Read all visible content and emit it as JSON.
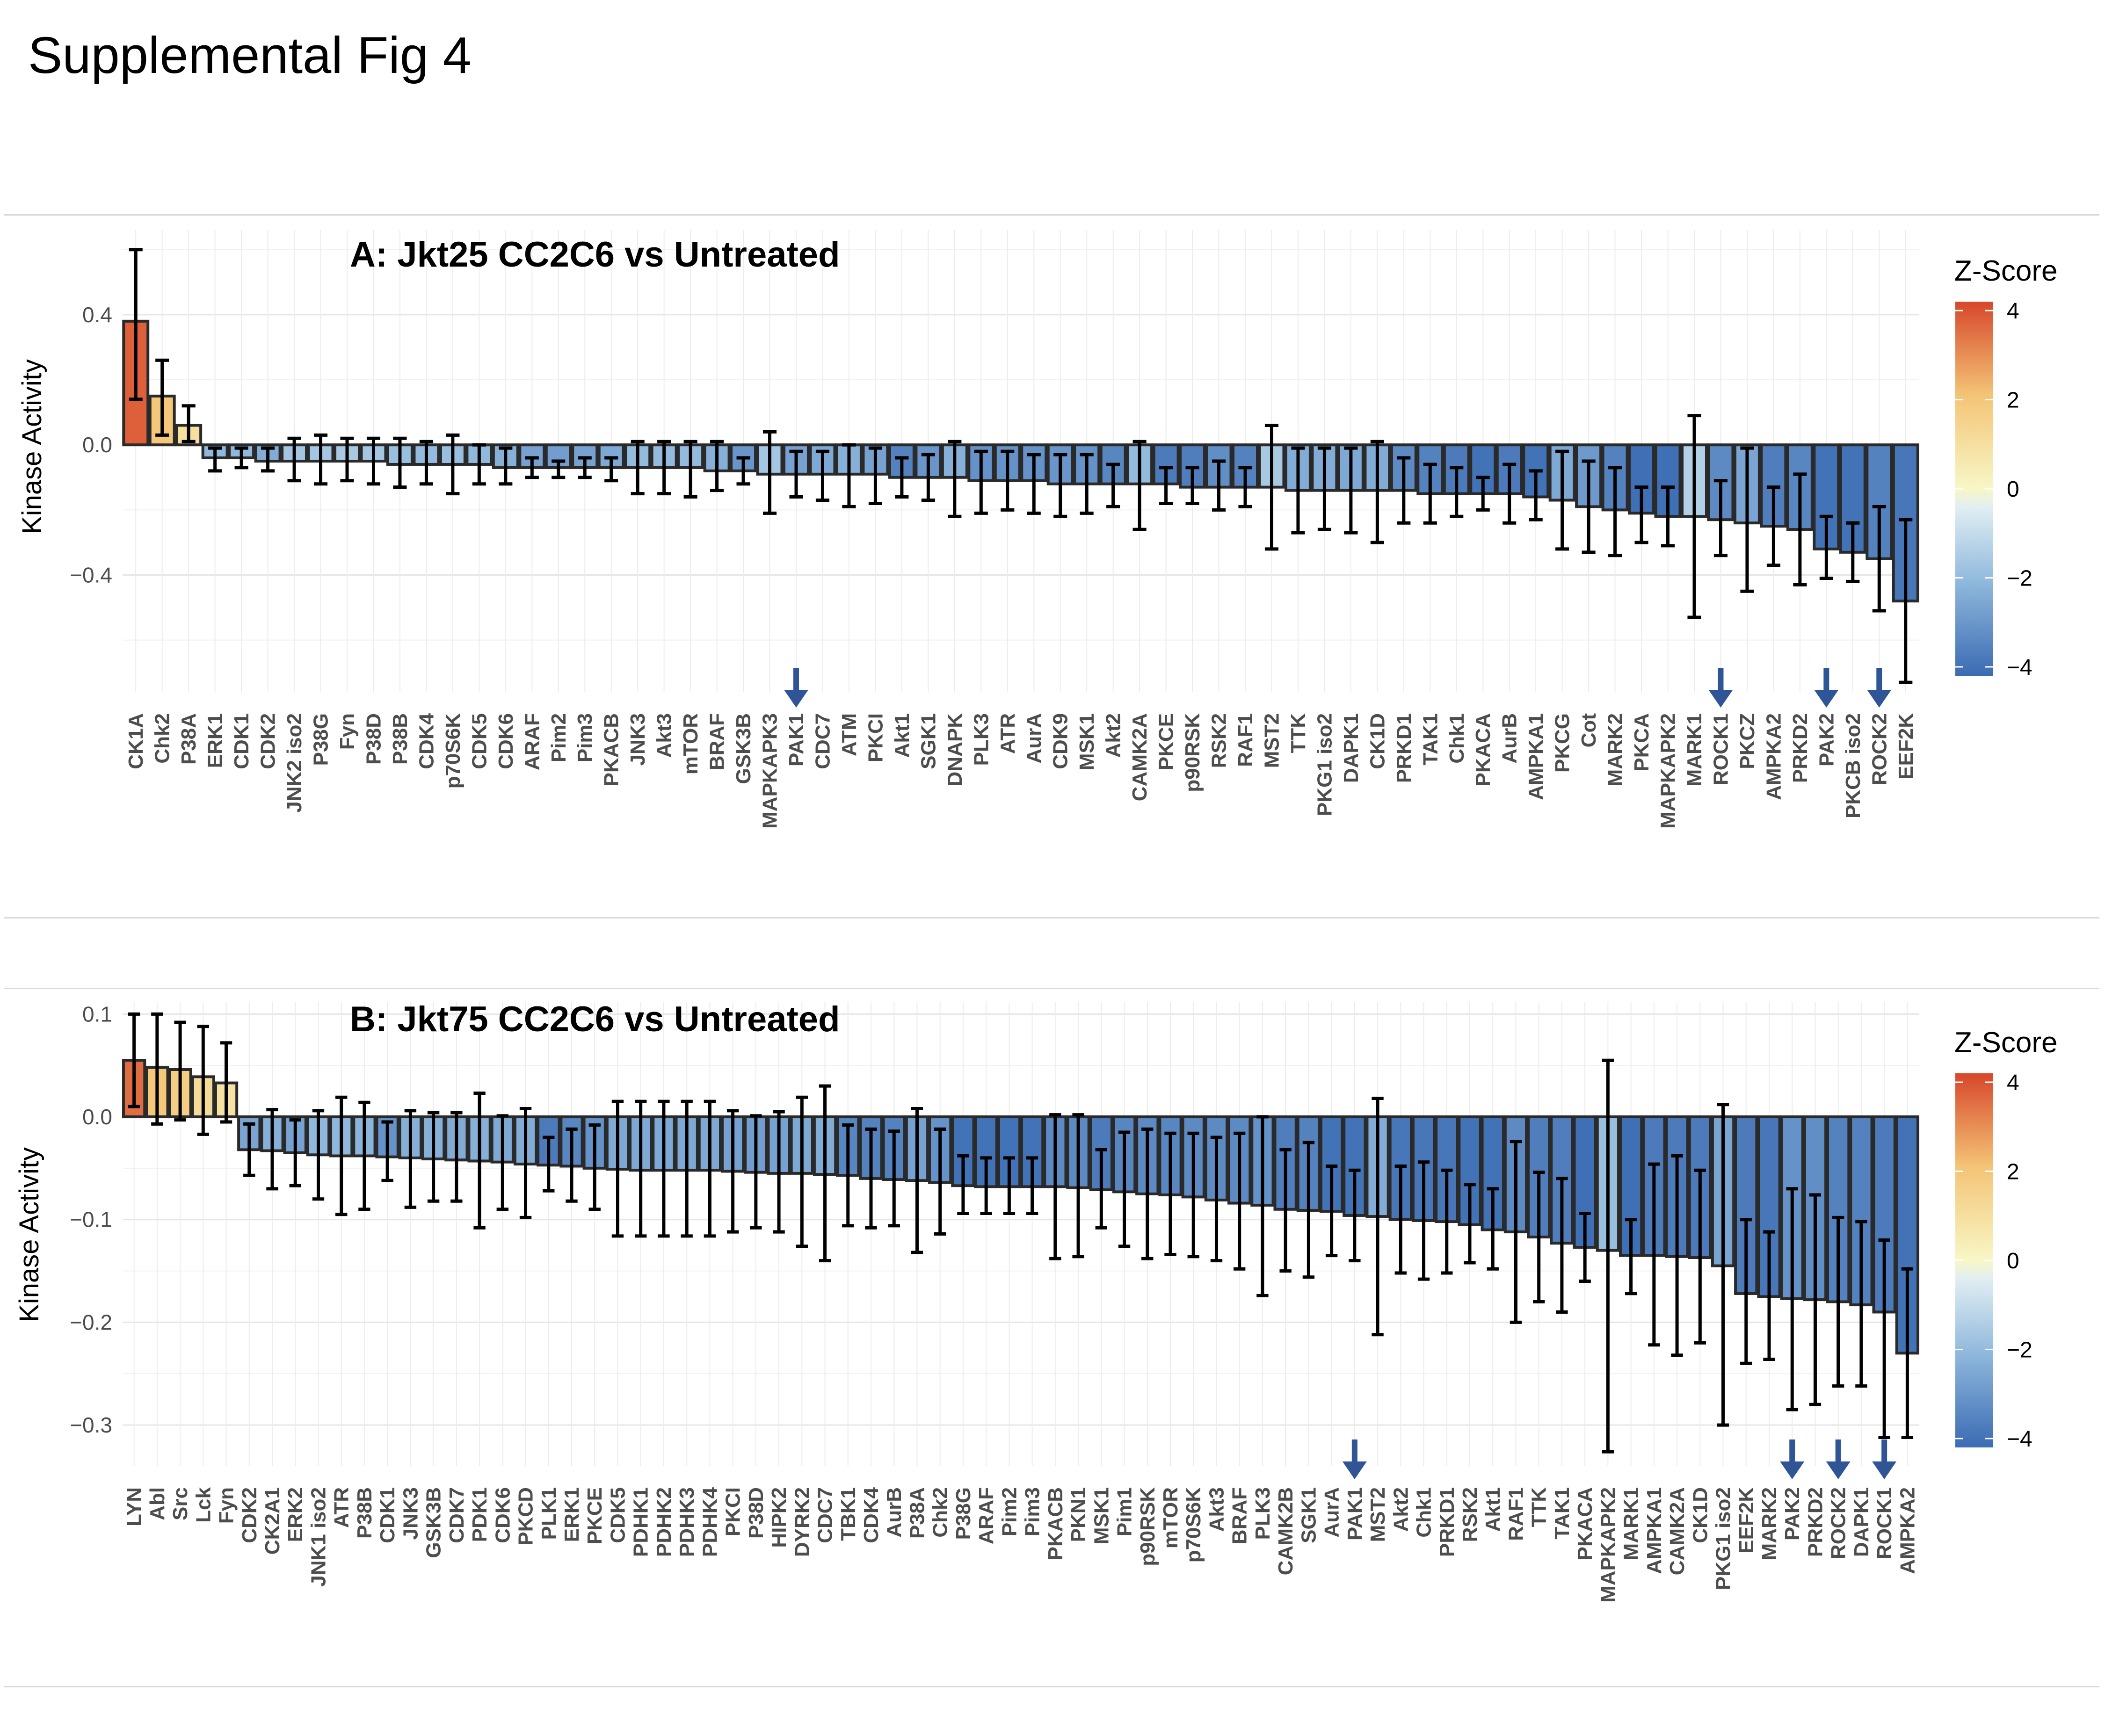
{
  "figure_title": "Supplemental Fig 4",
  "colors": {
    "z_low": "#3b6bb3",
    "z_mid": "#f7f7c6",
    "z_high": "#d7472b",
    "arrow": "#2f5597",
    "bar_outline": "#2a2a2a"
  },
  "chart_data": [
    {
      "type": "bar",
      "title": "A: Jkt25 CC2C6 vs Untreated",
      "xlabel": "",
      "ylabel": "Kinase Activity",
      "yticks": [
        -0.4,
        0.0,
        0.4
      ],
      "ytick_labels": [
        "-0.4",
        "0.0",
        "0.4"
      ],
      "ylim": [
        -0.76,
        0.66
      ],
      "legend": {
        "title": "Z-Score",
        "position": "right",
        "ticks": [
          4,
          2,
          0,
          -2,
          -4
        ],
        "range": [
          -4.2,
          4.2
        ]
      },
      "grid": true,
      "categories": [
        "CK1A",
        "Chk2",
        "P38A",
        "ERK1",
        "CDK1",
        "CDK2",
        "JNK2 iso2",
        "P38G",
        "Fyn",
        "P38D",
        "P38B",
        "CDK4",
        "p70S6K",
        "CDK5",
        "CDK6",
        "ARAF",
        "Pim2",
        "Pim3",
        "PKACB",
        "JNK3",
        "Akt3",
        "mTOR",
        "BRAF",
        "GSK3B",
        "MAPKAPK3",
        "PAK1",
        "CDC7",
        "ATM",
        "PKCI",
        "Akt1",
        "SGK1",
        "DNAPK",
        "PLK3",
        "ATR",
        "AurA",
        "CDK9",
        "MSK1",
        "Akt2",
        "CAMK2A",
        "PKCE",
        "p90RSK",
        "RSK2",
        "RAF1",
        "MST2",
        "TTK",
        "PKG1 iso2",
        "DAPK1",
        "CK1D",
        "PRKD1",
        "TAK1",
        "Chk1",
        "PKACA",
        "AurB",
        "AMPKA1",
        "PKCG",
        "Cot",
        "MARK2",
        "PKCA",
        "MAPKAPK2",
        "MARK1",
        "ROCK1",
        "PKCZ",
        "AMPKA2",
        "PRKD2",
        "PAK2",
        "PKCB iso2",
        "ROCK2",
        "EEF2K"
      ],
      "values": [
        0.38,
        0.15,
        0.06,
        -0.04,
        -0.04,
        -0.05,
        -0.05,
        -0.05,
        -0.05,
        -0.05,
        -0.06,
        -0.06,
        -0.06,
        -0.06,
        -0.07,
        -0.07,
        -0.07,
        -0.07,
        -0.07,
        -0.07,
        -0.07,
        -0.07,
        -0.08,
        -0.08,
        -0.09,
        -0.09,
        -0.09,
        -0.09,
        -0.09,
        -0.1,
        -0.1,
        -0.1,
        -0.11,
        -0.11,
        -0.11,
        -0.12,
        -0.12,
        -0.12,
        -0.12,
        -0.12,
        -0.13,
        -0.13,
        -0.13,
        -0.13,
        -0.14,
        -0.14,
        -0.14,
        -0.14,
        -0.14,
        -0.15,
        -0.15,
        -0.15,
        -0.15,
        -0.16,
        -0.17,
        -0.19,
        -0.2,
        -0.21,
        -0.22,
        -0.22,
        -0.23,
        -0.24,
        -0.25,
        -0.26,
        -0.32,
        -0.33,
        -0.35,
        -0.48
      ],
      "err_low": [
        0.14,
        0.03,
        0.01,
        -0.08,
        -0.07,
        -0.08,
        -0.11,
        -0.12,
        -0.11,
        -0.12,
        -0.13,
        -0.12,
        -0.15,
        -0.12,
        -0.12,
        -0.1,
        -0.1,
        -0.1,
        -0.11,
        -0.15,
        -0.15,
        -0.16,
        -0.14,
        -0.12,
        -0.21,
        -0.16,
        -0.17,
        -0.19,
        -0.18,
        -0.16,
        -0.17,
        -0.22,
        -0.21,
        -0.2,
        -0.21,
        -0.22,
        -0.21,
        -0.19,
        -0.26,
        -0.18,
        -0.18,
        -0.2,
        -0.19,
        -0.32,
        -0.27,
        -0.26,
        -0.27,
        -0.3,
        -0.24,
        -0.24,
        -0.22,
        -0.2,
        -0.24,
        -0.23,
        -0.32,
        -0.33,
        -0.34,
        -0.3,
        -0.31,
        -0.53,
        -0.34,
        -0.45,
        -0.37,
        -0.43,
        -0.41,
        -0.42,
        -0.51,
        -0.73
      ],
      "err_high": [
        0.6,
        0.26,
        0.12,
        -0.01,
        -0.01,
        -0.01,
        0.02,
        0.03,
        0.02,
        0.02,
        0.02,
        0.01,
        0.03,
        0.0,
        -0.01,
        -0.04,
        -0.05,
        -0.04,
        -0.04,
        0.01,
        0.01,
        0.01,
        0.01,
        -0.04,
        0.04,
        -0.02,
        -0.02,
        0.0,
        -0.01,
        -0.04,
        -0.03,
        0.01,
        -0.02,
        -0.02,
        -0.03,
        -0.03,
        -0.03,
        -0.06,
        0.01,
        -0.07,
        -0.07,
        -0.05,
        -0.07,
        0.06,
        -0.01,
        -0.01,
        -0.01,
        0.01,
        -0.04,
        -0.06,
        -0.07,
        -0.1,
        -0.06,
        -0.08,
        -0.02,
        -0.05,
        -0.07,
        -0.13,
        -0.13,
        0.09,
        -0.11,
        -0.01,
        -0.13,
        -0.09,
        -0.22,
        -0.24,
        -0.19,
        -0.23
      ],
      "zscores": [
        3.6,
        1.9,
        1.0,
        -2.0,
        -2.0,
        -2.3,
        -1.6,
        -1.6,
        -1.5,
        -1.6,
        -1.8,
        -1.9,
        -1.8,
        -2.0,
        -2.2,
        -2.6,
        -2.7,
        -2.6,
        -2.4,
        -1.9,
        -1.9,
        -1.9,
        -2.2,
        -2.9,
        -1.6,
        -2.6,
        -2.4,
        -2.2,
        -2.6,
        -3.4,
        -2.9,
        -2.2,
        -3.0,
        -3.0,
        -3.0,
        -2.9,
        -3.0,
        -3.3,
        -1.9,
        -3.6,
        -3.5,
        -3.1,
        -3.4,
        -1.5,
        -2.3,
        -2.3,
        -2.4,
        -2.3,
        -3.2,
        -3.4,
        -3.6,
        -3.8,
        -3.6,
        -3.8,
        -2.4,
        -2.8,
        -3.4,
        -3.9,
        -3.9,
        -1.3,
        -3.2,
        -2.5,
        -3.5,
        -3.3,
        -3.8,
        -3.8,
        -3.4,
        -3.7
      ],
      "arrows": [
        "PAK1",
        "ROCK1",
        "PAK2",
        "ROCK2"
      ]
    },
    {
      "type": "bar",
      "title": "B: Jkt75 CC2C6 vs Untreated",
      "xlabel": "",
      "ylabel": "Kinase Activity",
      "yticks": [
        -0.3,
        -0.2,
        -0.1,
        0.0,
        0.1
      ],
      "ytick_labels": [
        "-0.3",
        "-0.2",
        "-0.1",
        "0.0",
        "0.1"
      ],
      "ylim": [
        -0.34,
        0.112
      ],
      "legend": {
        "title": "Z-Score",
        "position": "right",
        "ticks": [
          4,
          2,
          0,
          -2,
          -4
        ],
        "range": [
          -4.2,
          4.2
        ]
      },
      "grid": true,
      "categories": [
        "LYN",
        "Abl",
        "Src",
        "Lck",
        "Fyn",
        "CDK2",
        "CK2A1",
        "ERK2",
        "JNK1 iso2",
        "ATR",
        "P38B",
        "CDK1",
        "JNK3",
        "GSK3B",
        "CDK7",
        "PDK1",
        "CDK6",
        "PKCD",
        "PLK1",
        "ERK1",
        "PKCE",
        "CDK5",
        "PDHK1",
        "PDHK2",
        "PDHK3",
        "PDHK4",
        "PKCI",
        "P38D",
        "HIPK2",
        "DYRK2",
        "CDC7",
        "TBK1",
        "CDK4",
        "AurB",
        "P38A",
        "Chk2",
        "P38G",
        "ARAF",
        "Pim2",
        "Pim3",
        "PKACB",
        "PKN1",
        "MSK1",
        "Pim1",
        "p90RSK",
        "mTOR",
        "p70S6K",
        "Akt3",
        "BRAF",
        "PLK3",
        "CAMK2B",
        "SGK1",
        "AurA",
        "PAK1",
        "MST2",
        "Akt2",
        "Chk1",
        "PRKD1",
        "RSK2",
        "Akt1",
        "RAF1",
        "TTK",
        "TAK1",
        "PKACA",
        "MAPKAPK2",
        "MARK1",
        "AMPKA1",
        "CAMK2A",
        "CK1D",
        "PKG1 iso2",
        "EEF2K",
        "MARK2",
        "PAK2",
        "PRKD2",
        "ROCK2",
        "DAPK1",
        "ROCK1",
        "AMPKA2"
      ],
      "values": [
        0.055,
        0.048,
        0.046,
        0.039,
        0.033,
        -0.032,
        -0.033,
        -0.035,
        -0.037,
        -0.038,
        -0.038,
        -0.039,
        -0.04,
        -0.041,
        -0.042,
        -0.043,
        -0.044,
        -0.046,
        -0.047,
        -0.048,
        -0.05,
        -0.051,
        -0.052,
        -0.052,
        -0.052,
        -0.052,
        -0.053,
        -0.054,
        -0.055,
        -0.055,
        -0.056,
        -0.057,
        -0.06,
        -0.061,
        -0.062,
        -0.064,
        -0.067,
        -0.068,
        -0.068,
        -0.068,
        -0.068,
        -0.069,
        -0.071,
        -0.073,
        -0.075,
        -0.076,
        -0.078,
        -0.081,
        -0.084,
        -0.086,
        -0.09,
        -0.091,
        -0.092,
        -0.096,
        -0.097,
        -0.1,
        -0.101,
        -0.102,
        -0.105,
        -0.11,
        -0.112,
        -0.117,
        -0.123,
        -0.127,
        -0.13,
        -0.135,
        -0.135,
        -0.136,
        -0.137,
        -0.145,
        -0.172,
        -0.175,
        -0.177,
        -0.178,
        -0.18,
        -0.183,
        -0.19,
        -0.23
      ],
      "err_low": [
        0.01,
        -0.007,
        -0.003,
        -0.017,
        -0.005,
        -0.057,
        -0.07,
        -0.067,
        -0.08,
        -0.095,
        -0.09,
        -0.062,
        -0.088,
        -0.082,
        -0.082,
        -0.108,
        -0.09,
        -0.098,
        -0.072,
        -0.082,
        -0.09,
        -0.116,
        -0.116,
        -0.116,
        -0.116,
        -0.116,
        -0.112,
        -0.108,
        -0.112,
        -0.126,
        -0.14,
        -0.106,
        -0.108,
        -0.106,
        -0.132,
        -0.114,
        -0.094,
        -0.094,
        -0.094,
        -0.094,
        -0.138,
        -0.136,
        -0.108,
        -0.126,
        -0.138,
        -0.134,
        -0.136,
        -0.14,
        -0.148,
        -0.174,
        -0.15,
        -0.156,
        -0.135,
        -0.14,
        -0.212,
        -0.152,
        -0.158,
        -0.152,
        -0.142,
        -0.148,
        -0.2,
        -0.18,
        -0.19,
        -0.16,
        -0.326,
        -0.172,
        -0.222,
        -0.232,
        -0.22,
        -0.3,
        -0.24,
        -0.236,
        -0.285,
        -0.28,
        -0.262,
        -0.262,
        -0.312,
        -0.312
      ],
      "err_high": [
        0.1,
        0.1,
        0.092,
        0.088,
        0.072,
        -0.007,
        0.007,
        -0.003,
        0.006,
        0.019,
        0.014,
        -0.005,
        0.006,
        0.004,
        0.004,
        0.023,
        0.001,
        0.008,
        -0.02,
        -0.012,
        -0.008,
        0.015,
        0.015,
        0.015,
        0.015,
        0.015,
        0.006,
        0.001,
        0.005,
        0.019,
        0.03,
        -0.008,
        -0.012,
        -0.014,
        0.008,
        -0.012,
        -0.038,
        -0.04,
        -0.04,
        -0.04,
        0.002,
        0.002,
        -0.032,
        -0.015,
        -0.012,
        -0.016,
        -0.016,
        -0.02,
        -0.016,
        0.0,
        -0.032,
        -0.025,
        -0.048,
        -0.052,
        0.018,
        -0.048,
        -0.044,
        -0.052,
        -0.066,
        -0.07,
        -0.024,
        -0.054,
        -0.06,
        -0.094,
        0.055,
        -0.1,
        -0.046,
        -0.038,
        -0.052,
        0.012,
        -0.1,
        -0.112,
        -0.07,
        -0.076,
        -0.098,
        -0.102,
        -0.12,
        -0.148
      ],
      "zscores": [
        3.4,
        1.9,
        1.6,
        1.1,
        0.9,
        -2.5,
        -2.2,
        -2.6,
        -2.0,
        -2.0,
        -2.1,
        -3.0,
        -2.2,
        -2.2,
        -2.3,
        -2.2,
        -2.4,
        -2.3,
        -3.6,
        -3.3,
        -3.0,
        -2.4,
        -2.4,
        -2.4,
        -2.4,
        -2.4,
        -2.6,
        -2.7,
        -2.6,
        -2.4,
        -2.3,
        -3.3,
        -3.4,
        -3.4,
        -2.6,
        -3.0,
        -3.8,
        -3.8,
        -3.8,
        -3.8,
        -3.2,
        -3.2,
        -3.6,
        -3.3,
        -3.2,
        -3.3,
        -3.2,
        -3.2,
        -3.2,
        -3.0,
        -3.5,
        -3.4,
        -3.8,
        -3.8,
        -2.3,
        -3.7,
        -3.7,
        -3.7,
        -3.8,
        -3.8,
        -3.2,
        -3.5,
        -3.5,
        -3.9,
        -1.8,
        -3.9,
        -3.6,
        -3.6,
        -3.6,
        -2.5,
        -3.6,
        -3.7,
        -3.0,
        -3.1,
        -3.4,
        -3.4,
        -3.6,
        -3.8
      ],
      "arrows": [
        "PAK1",
        "PAK2",
        "ROCK2",
        "ROCK1"
      ]
    }
  ]
}
